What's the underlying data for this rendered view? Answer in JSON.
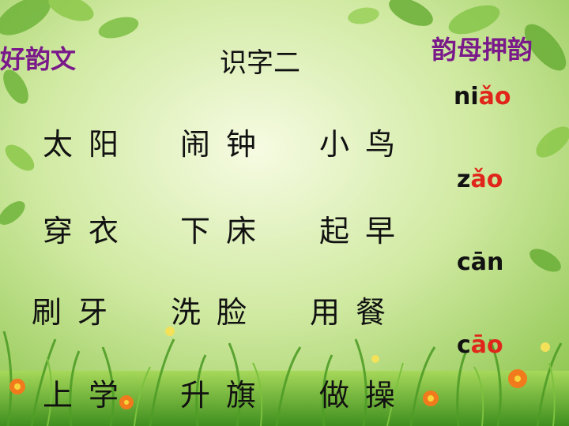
{
  "colors": {
    "accent_purple": "#7a1a8a",
    "rhyme_red": "#e0261b",
    "background_green": "#b7e07a"
  },
  "header": {
    "left_title": "好韵文",
    "center_title": "识字二",
    "right_title": "韵母押韵"
  },
  "words": [
    [
      "太阳",
      "闹钟",
      "小鸟"
    ],
    [
      "穿衣",
      "下床",
      "起早"
    ],
    [
      "刷牙",
      "洗脸",
      "用餐"
    ],
    [
      "上学",
      "升旗",
      "做操"
    ]
  ],
  "pinyin": [
    {
      "pre": "ni",
      "rhyme": "ǎo"
    },
    {
      "pre": "z",
      "rhyme": "ǎo"
    },
    {
      "pre": "cān",
      "rhyme": ""
    },
    {
      "pre": "c",
      "rhyme": "āo"
    }
  ],
  "decorations": [
    "leaf-cluster-icon",
    "grass-icon",
    "flower-icon"
  ]
}
